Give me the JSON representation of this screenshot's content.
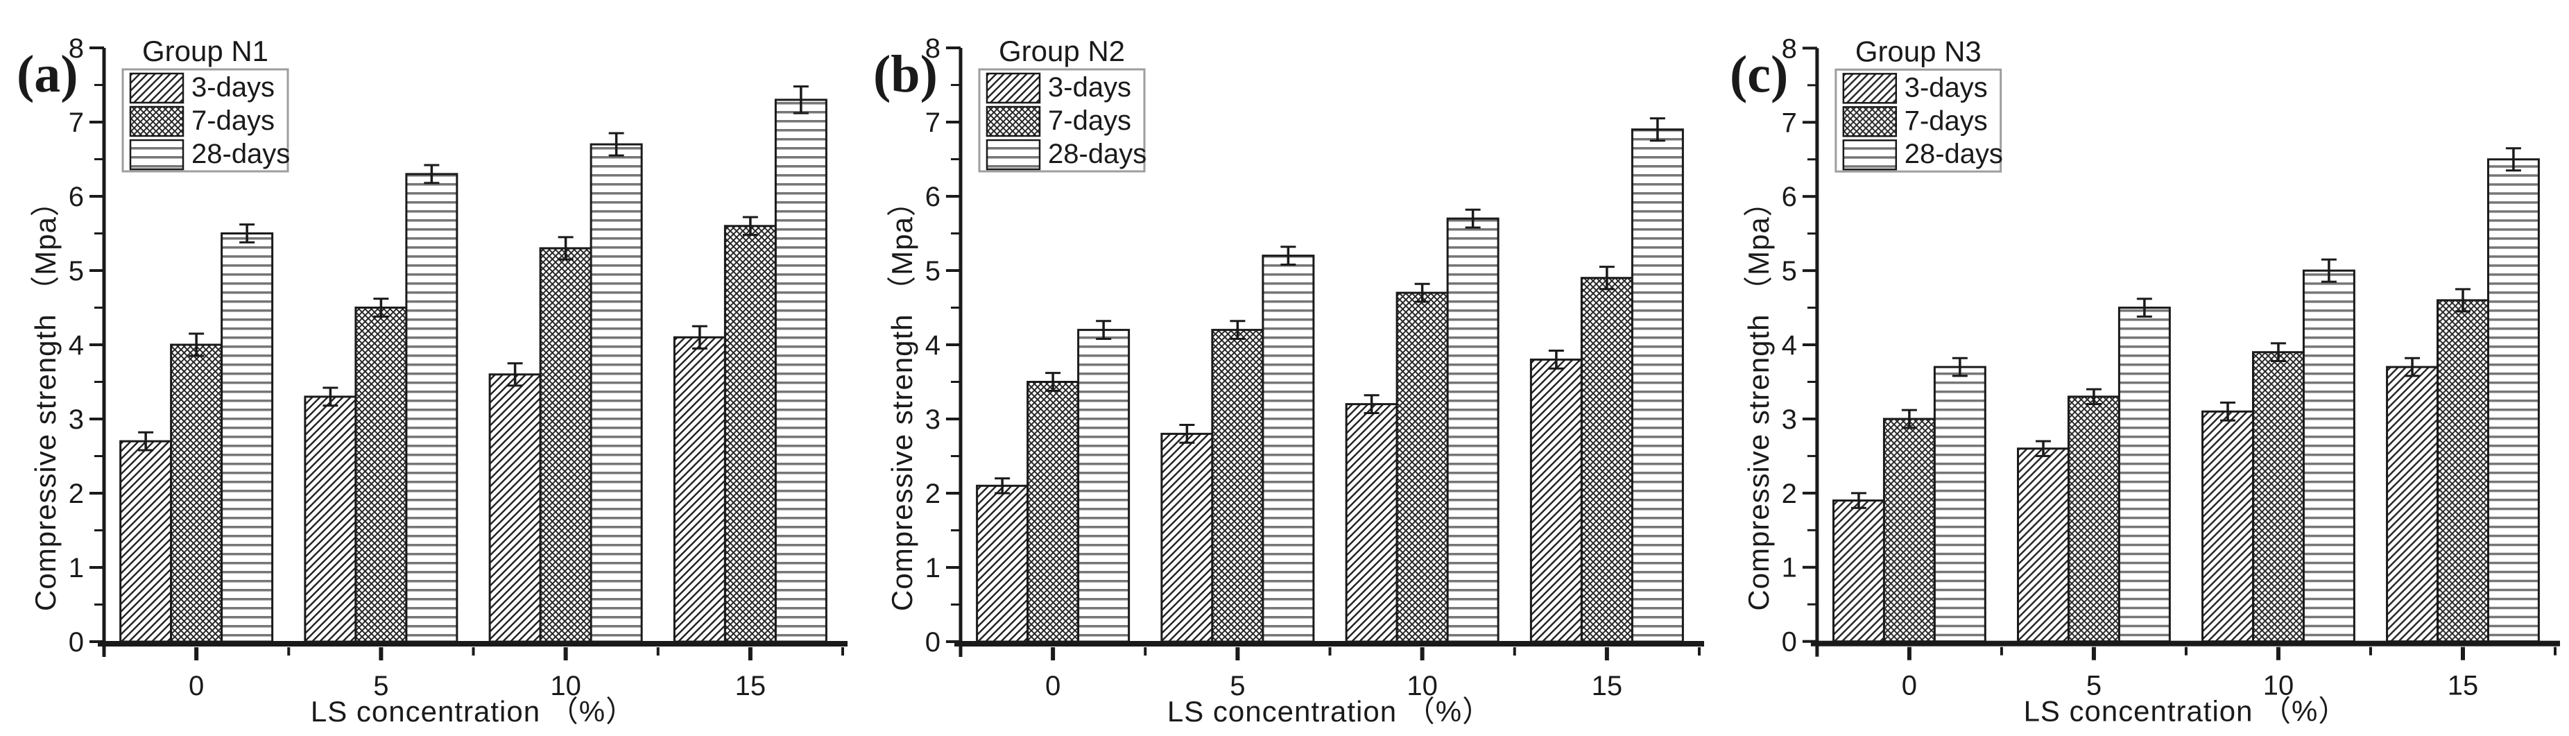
{
  "colors": {
    "ink": "#1a1a1a",
    "hatch_line": "#222222",
    "stripe_gray": "#767676",
    "legend_border": "#9e9e9e",
    "background": "#ffffff"
  },
  "chart_data": [
    {
      "type": "bar",
      "panel_label": "(a)",
      "title": "Group N1",
      "xlabel": "LS concentration （%）",
      "ylabel": "Compressive strength （Mpa）",
      "categories": [
        "0",
        "5",
        "10",
        "15"
      ],
      "series": [
        {
          "name": "3-days",
          "hatch": "diagonal",
          "values": [
            2.7,
            3.3,
            3.6,
            4.1
          ],
          "errors": [
            0.12,
            0.12,
            0.15,
            0.15
          ]
        },
        {
          "name": "7-days",
          "hatch": "crosshatch",
          "values": [
            4.0,
            4.5,
            5.3,
            5.6
          ],
          "errors": [
            0.15,
            0.12,
            0.15,
            0.12
          ]
        },
        {
          "name": "28-days",
          "hatch": "horizontal",
          "values": [
            5.5,
            6.3,
            6.7,
            7.3
          ],
          "errors": [
            0.12,
            0.12,
            0.15,
            0.18
          ]
        }
      ],
      "ylim": [
        0,
        8
      ],
      "yticks": [
        0,
        1,
        2,
        3,
        4,
        5,
        6,
        7,
        8
      ],
      "yminor_step": 0.5,
      "grid": false,
      "legend_position": "top-left"
    },
    {
      "type": "bar",
      "panel_label": "(b)",
      "title": "Group N2",
      "xlabel": "LS concentration （%）",
      "ylabel": "Compressive strength （Mpa）",
      "categories": [
        "0",
        "5",
        "10",
        "15"
      ],
      "series": [
        {
          "name": "3-days",
          "hatch": "diagonal",
          "values": [
            2.1,
            2.8,
            3.2,
            3.8
          ],
          "errors": [
            0.1,
            0.12,
            0.12,
            0.12
          ]
        },
        {
          "name": "7-days",
          "hatch": "crosshatch",
          "values": [
            3.5,
            4.2,
            4.7,
            4.9
          ],
          "errors": [
            0.12,
            0.12,
            0.12,
            0.15
          ]
        },
        {
          "name": "28-days",
          "hatch": "horizontal",
          "values": [
            4.2,
            5.2,
            5.7,
            6.9
          ],
          "errors": [
            0.12,
            0.12,
            0.12,
            0.15
          ]
        }
      ],
      "ylim": [
        0,
        8
      ],
      "yticks": [
        0,
        1,
        2,
        3,
        4,
        5,
        6,
        7,
        8
      ],
      "yminor_step": 0.5,
      "grid": false,
      "legend_position": "top-left"
    },
    {
      "type": "bar",
      "panel_label": "(c)",
      "title": "Group N3",
      "xlabel": "LS concentration （%）",
      "ylabel": "Compressive strength （Mpa）",
      "categories": [
        "0",
        "5",
        "10",
        "15"
      ],
      "series": [
        {
          "name": "3-days",
          "hatch": "diagonal",
          "values": [
            1.9,
            2.6,
            3.1,
            3.7
          ],
          "errors": [
            0.1,
            0.1,
            0.12,
            0.12
          ]
        },
        {
          "name": "7-days",
          "hatch": "crosshatch",
          "values": [
            3.0,
            3.3,
            3.9,
            4.6
          ],
          "errors": [
            0.12,
            0.1,
            0.12,
            0.15
          ]
        },
        {
          "name": "28-days",
          "hatch": "horizontal",
          "values": [
            3.7,
            4.5,
            5.0,
            6.5
          ],
          "errors": [
            0.12,
            0.12,
            0.15,
            0.15
          ]
        }
      ],
      "ylim": [
        0,
        8
      ],
      "yticks": [
        0,
        1,
        2,
        3,
        4,
        5,
        6,
        7,
        8
      ],
      "yminor_step": 0.5,
      "grid": false,
      "legend_position": "top-left"
    }
  ]
}
